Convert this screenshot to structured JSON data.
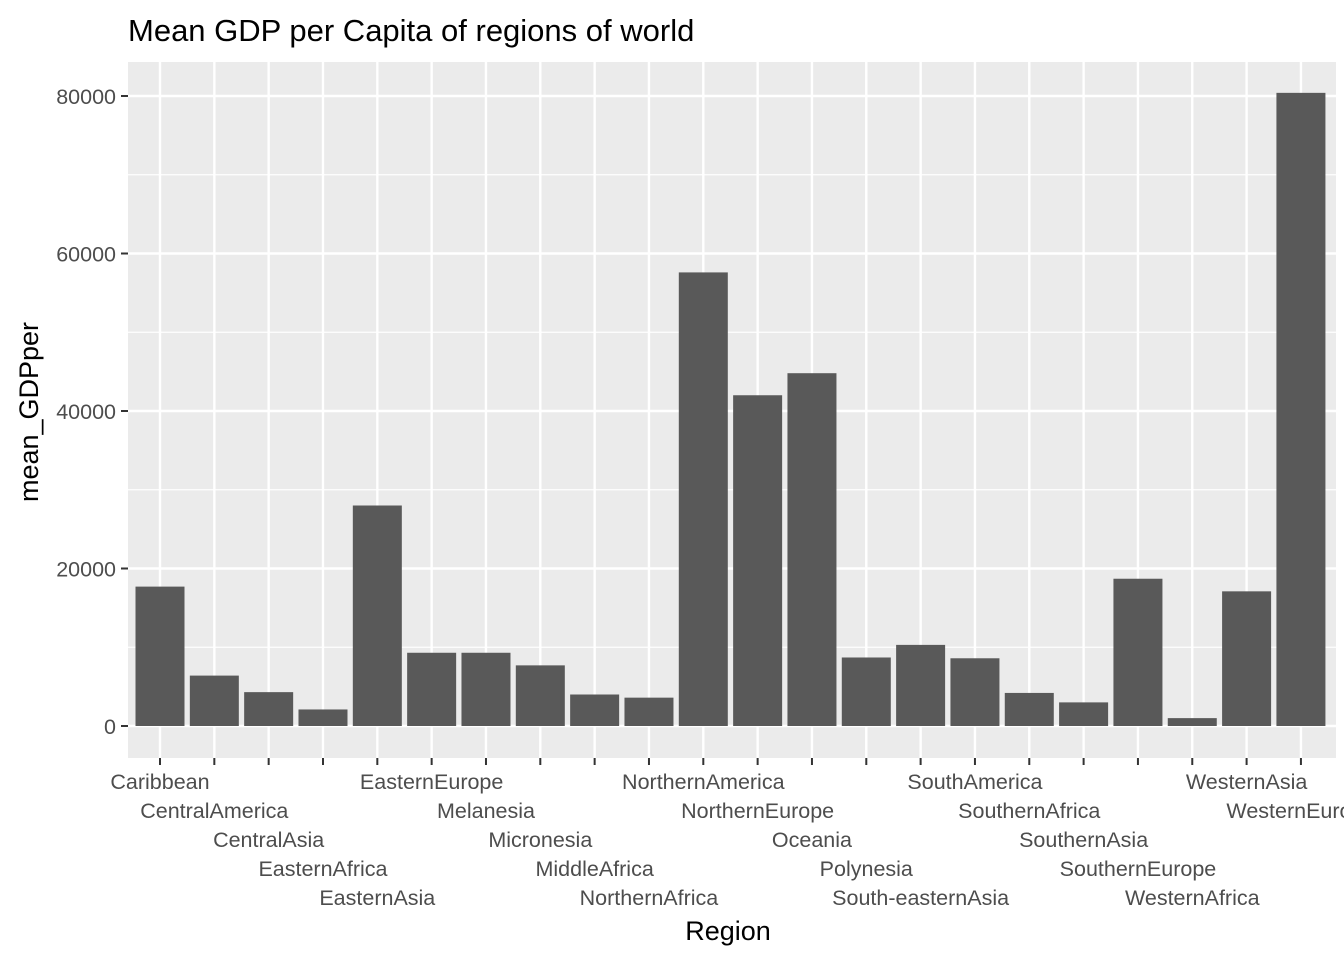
{
  "chart_data": {
    "type": "bar",
    "title": "Mean GDP per Capita of regions of world",
    "xlabel": "Region",
    "ylabel": "mean_GDPper",
    "ylim": [
      0,
      80000
    ],
    "yticks": [
      0,
      20000,
      40000,
      60000,
      80000
    ],
    "grid": true,
    "legend": "none",
    "colors": {
      "panel": "#ebebeb",
      "grid": "#ffffff",
      "bar": "#595959",
      "tick_text": "#4d4d4d"
    },
    "categories": [
      "Caribbean",
      "CentralAmerica",
      "CentralAsia",
      "EasternAfrica",
      "EasternAsia",
      "EasternEurope",
      "Melanesia",
      "Micronesia",
      "MiddleAfrica",
      "NorthernAfrica",
      "NorthernAmerica",
      "NorthernEurope",
      "Oceania",
      "Polynesia",
      "South-easternAsia",
      "SouthAmerica",
      "SouthernAfrica",
      "SouthernAsia",
      "SouthernEurope",
      "WesternAfrica",
      "WesternAsia",
      "WesternEurope"
    ],
    "values": [
      17700,
      6400,
      4300,
      2100,
      28000,
      9300,
      9300,
      7700,
      4000,
      3600,
      57600,
      42000,
      44800,
      8700,
      10300,
      8600,
      4200,
      3000,
      18700,
      1000,
      17100,
      80400
    ]
  }
}
